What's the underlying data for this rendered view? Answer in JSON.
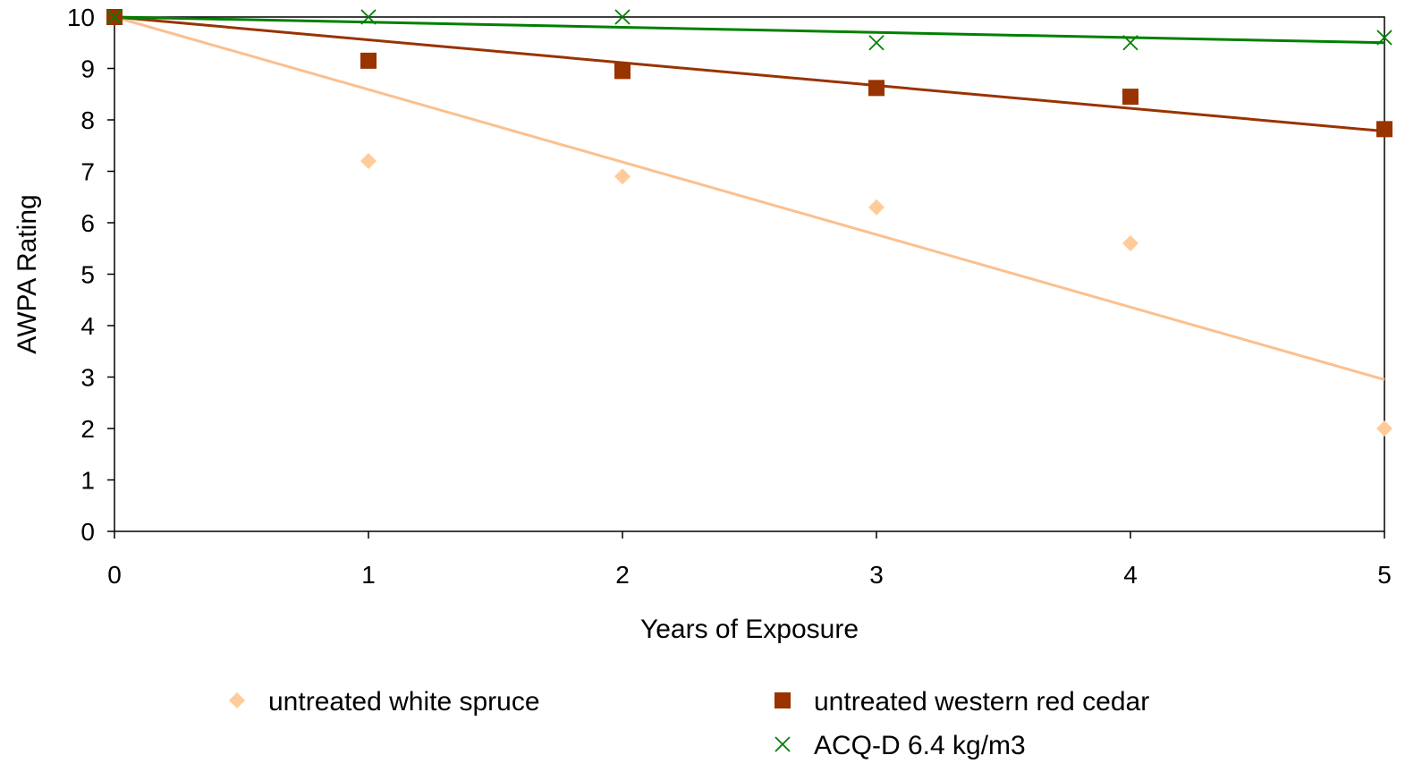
{
  "chart_data": {
    "type": "scatter",
    "xlabel": "Years of Exposure",
    "ylabel": "AWPA Rating",
    "xlim": [
      0,
      5
    ],
    "ylim": [
      0,
      10
    ],
    "x_ticks": [
      "0",
      "1",
      "2",
      "3",
      "4",
      "5"
    ],
    "y_ticks": [
      "0",
      "1",
      "2",
      "3",
      "4",
      "5",
      "6",
      "7",
      "8",
      "9",
      "10"
    ],
    "grid": false,
    "legend_position": "bottom",
    "series": [
      {
        "name": "untreated white spruce",
        "marker": "diamond",
        "color": "#FFCC99",
        "trend_color": "#FAC090",
        "x": [
          0,
          1,
          2,
          3,
          4,
          5
        ],
        "y": [
          10,
          7.2,
          6.9,
          6.3,
          5.6,
          2.0
        ],
        "trendline": [
          10.0,
          2.95
        ]
      },
      {
        "name": "untreated western red cedar",
        "marker": "square",
        "color": "#993300",
        "trend_color": "#993300",
        "x": [
          0,
          1,
          2,
          3,
          4,
          5
        ],
        "y": [
          10,
          9.15,
          8.95,
          8.62,
          8.45,
          7.82
        ],
        "trendline": [
          10.0,
          7.78
        ]
      },
      {
        "name": "ACQ-D 6.4 kg/m3",
        "marker": "x",
        "color": "#008000",
        "trend_color": "#008000",
        "x": [
          0,
          1,
          2,
          3,
          4,
          5
        ],
        "y": [
          10,
          10,
          10,
          9.5,
          9.5,
          9.6
        ],
        "trendline": [
          10.0,
          9.5
        ]
      }
    ]
  }
}
